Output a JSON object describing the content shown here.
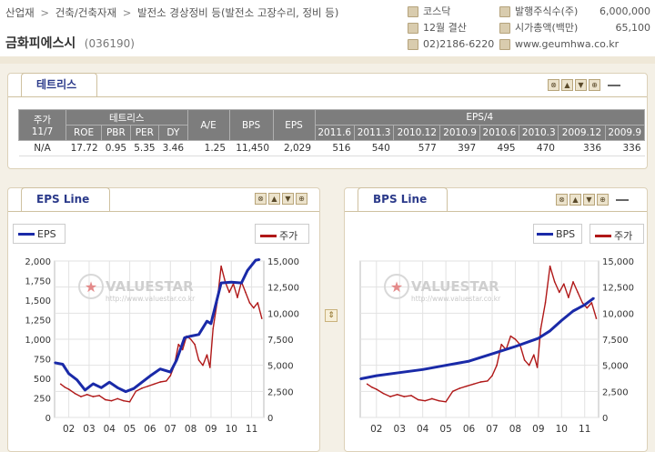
{
  "breadcrumb": {
    "items": [
      "산업재",
      "건축/건축자재",
      "발전소 경상정비 등(발전소 고장수리, 정비 등)"
    ],
    "separator": ">"
  },
  "company": {
    "name": "금화피에스시",
    "code": "(036190)"
  },
  "info_left": [
    {
      "icon": "market-icon",
      "text": "코스닥"
    },
    {
      "icon": "calendar-icon",
      "text": "12월 결산"
    },
    {
      "icon": "phone-icon",
      "text": "02)2186-6220"
    }
  ],
  "info_right": [
    {
      "icon": "shares-icon",
      "label": "발행주식수(주)",
      "value": "6,000,000"
    },
    {
      "icon": "marketcap-icon",
      "label": "시가총액(백만)",
      "value": "65,100"
    },
    {
      "icon": "home-icon",
      "label": "www.geumhwa.co.kr",
      "value": ""
    }
  ],
  "trends_panel": {
    "tab": "테트리스",
    "controls": [
      "⊗",
      "▲",
      "▼",
      "⊕"
    ],
    "table": {
      "h_price": "주가",
      "h_price_date": "11/7",
      "h_group": "테트리스",
      "h_ae": "A/E",
      "h_bps": "BPS",
      "h_eps": "EPS",
      "h_eps4": "EPS/4",
      "sub": [
        "ROE",
        "PBR",
        "PER",
        "DY"
      ],
      "eps_periods": [
        "2011.6",
        "2011.3",
        "2010.12",
        "2010.9",
        "2010.6",
        "2010.3",
        "2009.12",
        "2009.9"
      ],
      "row": {
        "price": "N/A",
        "roe": "17.72",
        "pbr": "0.95",
        "per": "5.35",
        "dy": "3.46",
        "ae": "1.25",
        "bps": "11,450",
        "eps": "2,029",
        "eps_q": [
          "516",
          "540",
          "577",
          "397",
          "495",
          "470",
          "336",
          "336"
        ]
      }
    }
  },
  "eps_panel": {
    "tab": "EPS Line",
    "legend_main": "EPS",
    "legend_price": "주가",
    "watermark": "VALUESTAR",
    "watermark_url": "http://www.valuestar.co.kr"
  },
  "bps_panel": {
    "tab": "BPS Line",
    "legend_main": "BPS",
    "legend_price": "주가",
    "watermark": "VALUESTAR",
    "watermark_url": "http://www.valuestar.co.kr"
  },
  "chart_data": [
    {
      "type": "line",
      "x_ticks": [
        "02",
        "03",
        "04",
        "05",
        "06",
        "07",
        "08",
        "09",
        "10",
        "11"
      ],
      "y_left_ticks": [
        "2,000",
        "1,750",
        "1,500",
        "1,250",
        "1,000",
        "750",
        "500",
        "250",
        "0"
      ],
      "y_right_ticks": [
        "15,000",
        "12,500",
        "10,000",
        "7,500",
        "5,000",
        "2,500",
        "0"
      ],
      "ylim_left": [
        0,
        2000
      ],
      "ylim_right": [
        0,
        15000
      ],
      "series": [
        {
          "name": "EPS",
          "axis": "left",
          "color": "#1a2aa8",
          "x": [
            2001.3,
            2001.7,
            2002.0,
            2002.4,
            2002.8,
            2003.2,
            2003.6,
            2004.0,
            2004.4,
            2004.8,
            2005.2,
            2005.6,
            2006.0,
            2006.5,
            2007.0,
            2007.3,
            2007.7,
            2008.0,
            2008.4,
            2008.8,
            2009.0,
            2009.5,
            2010.0,
            2010.5,
            2010.8,
            2011.2,
            2011.4
          ],
          "values": [
            700,
            680,
            560,
            480,
            350,
            430,
            380,
            450,
            380,
            330,
            370,
            450,
            530,
            620,
            580,
            730,
            1020,
            1040,
            1060,
            1230,
            1200,
            1720,
            1730,
            1720,
            1880,
            2010,
            2020
          ]
        },
        {
          "name": "주가",
          "axis": "right",
          "color": "#b01818",
          "x": [
            2001.6,
            2001.8,
            2002.0,
            2002.3,
            2002.6,
            2002.9,
            2003.2,
            2003.5,
            2003.8,
            2004.1,
            2004.4,
            2004.7,
            2005.0,
            2005.3,
            2005.6,
            2005.9,
            2006.2,
            2006.5,
            2006.8,
            2007.0,
            2007.2,
            2007.4,
            2007.6,
            2007.8,
            2008.0,
            2008.2,
            2008.4,
            2008.6,
            2008.8,
            2008.95,
            2009.1,
            2009.3,
            2009.5,
            2009.7,
            2009.9,
            2010.1,
            2010.3,
            2010.5,
            2010.7,
            2010.9,
            2011.1,
            2011.3,
            2011.5
          ],
          "values": [
            3200,
            2900,
            2700,
            2300,
            2000,
            2200,
            2000,
            2100,
            1700,
            1600,
            1800,
            1600,
            1500,
            2500,
            2800,
            3000,
            3200,
            3400,
            3500,
            4000,
            5000,
            7000,
            6500,
            7800,
            7500,
            7000,
            5500,
            5000,
            6000,
            4800,
            8500,
            11000,
            14500,
            13000,
            12000,
            12800,
            11500,
            13000,
            12000,
            11000,
            10500,
            11000,
            9500
          ]
        }
      ]
    },
    {
      "type": "line",
      "x_ticks": [
        "02",
        "03",
        "04",
        "05",
        "06",
        "07",
        "08",
        "09",
        "10",
        "11"
      ],
      "y_right_ticks": [
        "15,000",
        "12,500",
        "10,000",
        "7,500",
        "5,000",
        "2,500",
        "0"
      ],
      "ylim_right": [
        0,
        15000
      ],
      "series": [
        {
          "name": "BPS",
          "axis": "right",
          "color": "#1a2aa8",
          "x": [
            2001.3,
            2002.0,
            2003.0,
            2004.0,
            2005.0,
            2006.0,
            2007.0,
            2008.0,
            2009.0,
            2009.5,
            2010.0,
            2010.5,
            2011.0,
            2011.4
          ],
          "values": [
            3700,
            4000,
            4300,
            4600,
            5000,
            5400,
            6100,
            6800,
            7600,
            8300,
            9300,
            10200,
            10800,
            11450
          ]
        },
        {
          "name": "주가",
          "axis": "right",
          "color": "#b01818",
          "x": [
            2001.6,
            2001.8,
            2002.0,
            2002.3,
            2002.6,
            2002.9,
            2003.2,
            2003.5,
            2003.8,
            2004.1,
            2004.4,
            2004.7,
            2005.0,
            2005.3,
            2005.6,
            2005.9,
            2006.2,
            2006.5,
            2006.8,
            2007.0,
            2007.2,
            2007.4,
            2007.6,
            2007.8,
            2008.0,
            2008.2,
            2008.4,
            2008.6,
            2008.8,
            2008.95,
            2009.1,
            2009.3,
            2009.5,
            2009.7,
            2009.9,
            2010.1,
            2010.3,
            2010.5,
            2010.7,
            2010.9,
            2011.1,
            2011.3,
            2011.5
          ],
          "values": [
            3200,
            2900,
            2700,
            2300,
            2000,
            2200,
            2000,
            2100,
            1700,
            1600,
            1800,
            1600,
            1500,
            2500,
            2800,
            3000,
            3200,
            3400,
            3500,
            4000,
            5000,
            7000,
            6500,
            7800,
            7500,
            7000,
            5500,
            5000,
            6000,
            4800,
            8500,
            11000,
            14500,
            13000,
            12000,
            12800,
            11500,
            13000,
            12000,
            11000,
            10500,
            11000,
            9500
          ]
        }
      ]
    }
  ]
}
